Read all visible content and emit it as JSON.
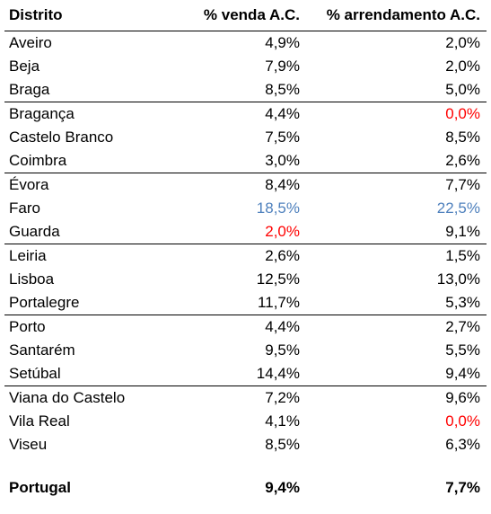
{
  "header": {
    "distrito": "Distrito",
    "venda": "% venda A.C.",
    "arrendamento": "% arrendamento A.C."
  },
  "rows": [
    {
      "name": "Aveiro",
      "venda": "4,9%",
      "arr": "2,0%"
    },
    {
      "name": "Beja",
      "venda": "7,9%",
      "arr": "2,0%"
    },
    {
      "name": "Braga",
      "venda": "8,5%",
      "arr": "5,0%"
    },
    {
      "name": "Bragança",
      "venda": "4,4%",
      "arr": "0,0%"
    },
    {
      "name": "Castelo Branco",
      "venda": "7,5%",
      "arr": "8,5%"
    },
    {
      "name": "Coimbra",
      "venda": "3,0%",
      "arr": "2,6%"
    },
    {
      "name": "Évora",
      "venda": "8,4%",
      "arr": "7,7%"
    },
    {
      "name": "Faro",
      "venda": "18,5%",
      "arr": "22,5%"
    },
    {
      "name": "Guarda",
      "venda": "2,0%",
      "arr": "9,1%"
    },
    {
      "name": "Leiria",
      "venda": "2,6%",
      "arr": "1,5%"
    },
    {
      "name": "Lisboa",
      "venda": "12,5%",
      "arr": "13,0%"
    },
    {
      "name": "Portalegre",
      "venda": "11,7%",
      "arr": "5,3%"
    },
    {
      "name": "Porto",
      "venda": "4,4%",
      "arr": "2,7%"
    },
    {
      "name": "Santarém",
      "venda": "9,5%",
      "arr": "5,5%"
    },
    {
      "name": "Setúbal",
      "venda": "14,4%",
      "arr": "9,4%"
    },
    {
      "name": "Viana do Castelo",
      "venda": "7,2%",
      "arr": "9,6%"
    },
    {
      "name": "Vila Real",
      "venda": "4,1%",
      "arr": "0,0%"
    },
    {
      "name": "Viseu",
      "venda": "8,5%",
      "arr": "6,3%"
    }
  ],
  "total": {
    "name": "Portugal",
    "venda": "9,4%",
    "arr": "7,7%"
  },
  "colors": {
    "highlight_max": "#4f81bd",
    "highlight_min": "#ff0000",
    "text": "#000000"
  }
}
